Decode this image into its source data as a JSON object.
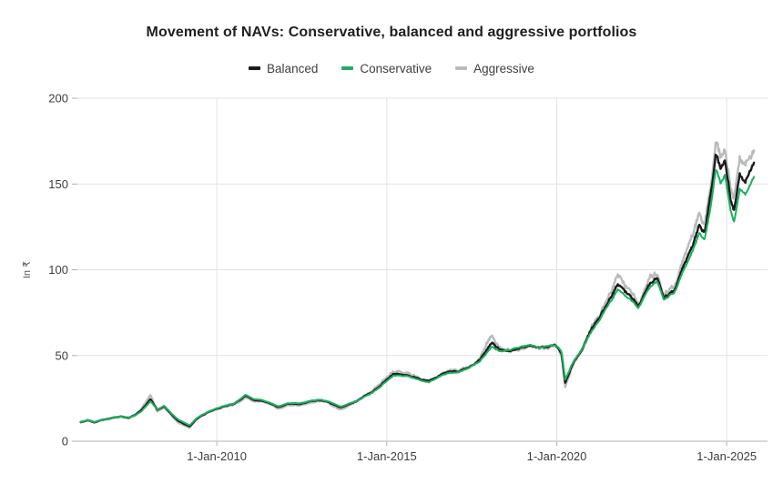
{
  "chart_data": {
    "type": "line",
    "title": "Movement of NAVs: Conservative, balanced and aggressive portfolios",
    "ylabel": "In ₹",
    "xlabel": "",
    "ylim": [
      0,
      200
    ],
    "y_ticks": [
      0,
      50,
      100,
      150,
      200
    ],
    "x_ticks": [
      {
        "year": 2010,
        "label": "1-Jan-2010"
      },
      {
        "year": 2015,
        "label": "1-Jan-2015"
      },
      {
        "year": 2020,
        "label": "1-Jan-2020"
      },
      {
        "year": 2025,
        "label": "1-Jan-2025"
      }
    ],
    "x_domain": [
      2005.9,
      2026.2
    ],
    "grid": true,
    "legend_position": "top",
    "colors": {
      "gridline": "#e3e3e3",
      "axis_line": "#b3b3b3",
      "tick_label": "#3d3d3d",
      "title": "#1f1f1f"
    },
    "x": [
      2006.0,
      2006.2,
      2006.4,
      2006.6,
      2006.8,
      2007.0,
      2007.2,
      2007.4,
      2007.6,
      2007.8,
      2008.05,
      2008.25,
      2008.45,
      2008.65,
      2008.85,
      2009.05,
      2009.2,
      2009.4,
      2009.6,
      2009.8,
      2010.0,
      2010.25,
      2010.5,
      2010.85,
      2011.05,
      2011.35,
      2011.8,
      2012.1,
      2012.45,
      2012.8,
      2013.05,
      2013.3,
      2013.65,
      2013.9,
      2014.2,
      2014.5,
      2014.8,
      2015.2,
      2015.5,
      2015.9,
      2016.25,
      2016.55,
      2016.8,
      2017.1,
      2017.45,
      2017.75,
      2018.1,
      2018.35,
      2018.65,
      2018.9,
      2019.2,
      2019.45,
      2019.7,
      2019.95,
      2020.14,
      2020.25,
      2020.45,
      2020.7,
      2020.95,
      2021.2,
      2021.5,
      2021.8,
      2022.05,
      2022.4,
      2022.65,
      2022.95,
      2023.15,
      2023.45,
      2023.7,
      2023.95,
      2024.2,
      2024.35,
      2024.55,
      2024.68,
      2024.82,
      2024.95,
      2025.1,
      2025.22,
      2025.38,
      2025.55,
      2025.8
    ],
    "draw_order": [
      2,
      0,
      1
    ],
    "series": [
      {
        "name": "Balanced",
        "color": "#1b1b1b",
        "width": 2.4,
        "noise": 0.018,
        "values": [
          11.2,
          12.3,
          11.0,
          12.2,
          13.0,
          13.8,
          14.4,
          13.6,
          15.2,
          18.5,
          24.5,
          18.5,
          20.5,
          16.0,
          12.0,
          10.0,
          8.5,
          13.0,
          15.5,
          17.5,
          19.0,
          20.5,
          21.5,
          27.0,
          24.5,
          23.5,
          20.0,
          22.0,
          22.0,
          23.8,
          24.0,
          23.0,
          19.8,
          21.8,
          24.5,
          28.0,
          32.0,
          39.5,
          38.5,
          36.5,
          34.5,
          38.5,
          40.5,
          40.5,
          44.5,
          48.0,
          57.5,
          53.0,
          52.5,
          54.5,
          55.5,
          53.0,
          54.5,
          56.0,
          52.0,
          34.0,
          44.0,
          52.0,
          63.0,
          71.0,
          81.0,
          92.0,
          87.0,
          78.5,
          89.0,
          96.0,
          85.0,
          87.0,
          100.0,
          111.0,
          126.0,
          122.0,
          147.0,
          167.0,
          158.0,
          164.0,
          142.0,
          132.0,
          153.0,
          150.0,
          163.0
        ]
      },
      {
        "name": "Conservative",
        "color": "#1cb05e",
        "width": 2.0,
        "noise": 0.011,
        "values": [
          11.3,
          12.3,
          11.2,
          12.2,
          13.0,
          13.8,
          14.4,
          13.8,
          15.0,
          17.8,
          23.5,
          18.8,
          20.8,
          16.5,
          12.8,
          10.8,
          9.2,
          13.2,
          15.6,
          17.6,
          19.2,
          20.7,
          21.8,
          27.4,
          24.9,
          23.9,
          20.4,
          22.3,
          22.3,
          24.0,
          24.2,
          23.3,
          20.2,
          22.0,
          24.3,
          27.5,
          31.3,
          38.6,
          37.8,
          36.0,
          34.3,
          38.0,
          39.8,
          39.9,
          43.7,
          47.0,
          55.5,
          52.6,
          53.0,
          54.8,
          55.7,
          53.5,
          54.8,
          56.2,
          53.0,
          36.0,
          45.0,
          52.3,
          62.0,
          69.5,
          79.0,
          89.0,
          85.0,
          77.5,
          87.0,
          93.5,
          83.5,
          85.5,
          97.5,
          107.5,
          121.0,
          117.5,
          140.5,
          159.0,
          150.5,
          156.0,
          136.0,
          126.5,
          146.0,
          143.5,
          154.0
        ]
      },
      {
        "name": "Aggressive",
        "color": "#b9bcbc",
        "width": 2.4,
        "noise": 0.038,
        "values": [
          11.0,
          12.2,
          10.6,
          12.1,
          13.0,
          13.8,
          14.3,
          13.3,
          15.5,
          19.5,
          27.5,
          17.8,
          20.0,
          15.2,
          11.0,
          9.0,
          7.6,
          12.6,
          15.3,
          17.3,
          18.6,
          20.1,
          21.0,
          26.2,
          23.7,
          22.8,
          19.0,
          21.5,
          21.4,
          23.4,
          23.6,
          22.5,
          18.8,
          21.4,
          24.7,
          28.6,
          32.8,
          40.8,
          39.2,
          36.8,
          33.6,
          39.0,
          41.2,
          41.0,
          45.5,
          50.0,
          62.0,
          53.5,
          51.0,
          53.5,
          54.5,
          51.5,
          53.5,
          55.5,
          51.0,
          31.5,
          43.0,
          51.5,
          64.5,
          73.0,
          84.0,
          97.0,
          90.5,
          78.5,
          91.5,
          99.0,
          87.0,
          89.5,
          103.5,
          115.0,
          131.5,
          127.0,
          153.0,
          175.0,
          166.0,
          172.0,
          148.5,
          138.0,
          160.0,
          157.5,
          170.0
        ]
      }
    ]
  }
}
